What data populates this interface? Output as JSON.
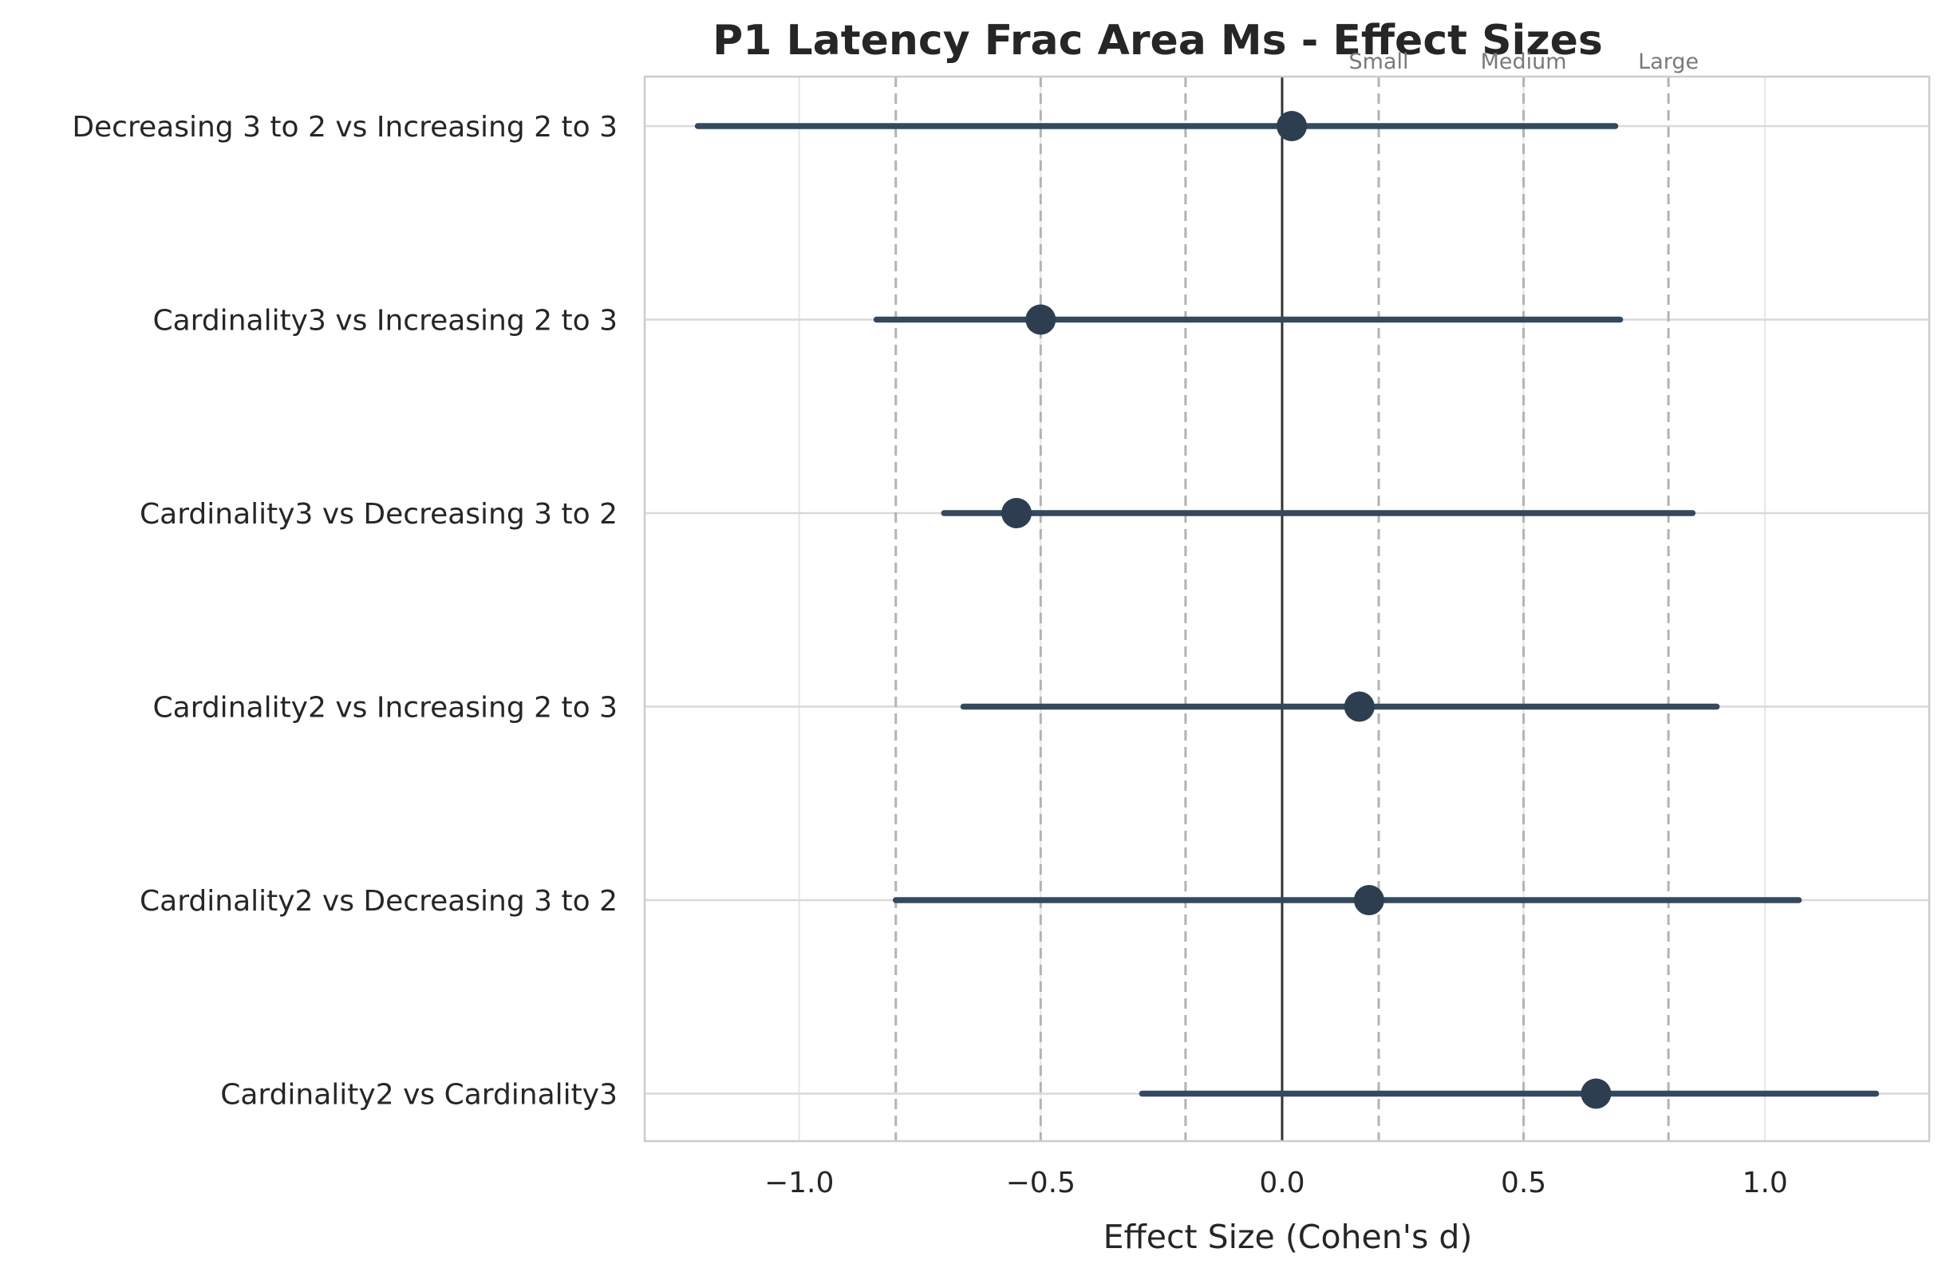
{
  "chart_data": {
    "type": "scatter",
    "subtype": "forest-plot",
    "title": "P1 Latency Frac Area Ms - Effect Sizes",
    "xlabel": "Effect Size (Cohen's d)",
    "ylabel": "",
    "xlim": [
      -1.32,
      1.34
    ],
    "xticks": [
      -1.0,
      -0.5,
      0.0,
      0.5,
      1.0
    ],
    "xtick_labels": [
      "−1.0",
      "−0.5",
      "0.0",
      "0.5",
      "1.0"
    ],
    "grid": true,
    "comparisons": [
      {
        "label": "Decreasing 3 to 2 vs Increasing 2 to 3",
        "d": 0.02,
        "ci_low": -1.21,
        "ci_high": 0.69
      },
      {
        "label": "Cardinality3 vs Increasing 2 to 3",
        "d": -0.5,
        "ci_low": -0.84,
        "ci_high": 0.7
      },
      {
        "label": "Cardinality3 vs Decreasing 3 to 2",
        "d": -0.55,
        "ci_low": -0.7,
        "ci_high": 0.85
      },
      {
        "label": "Cardinality2 vs Increasing 2 to 3",
        "d": 0.16,
        "ci_low": -0.66,
        "ci_high": 0.9
      },
      {
        "label": "Cardinality2 vs Decreasing 3 to 2",
        "d": 0.18,
        "ci_low": -0.8,
        "ci_high": 1.07
      },
      {
        "label": "Cardinality2 vs Cardinality3",
        "d": 0.65,
        "ci_low": -0.29,
        "ci_high": 1.23
      }
    ],
    "thresholds": [
      {
        "value": -0.8,
        "label": ""
      },
      {
        "value": -0.5,
        "label": ""
      },
      {
        "value": -0.2,
        "label": ""
      },
      {
        "value": 0.2,
        "label": "Small"
      },
      {
        "value": 0.5,
        "label": "Medium"
      },
      {
        "value": 0.8,
        "label": "Large"
      }
    ],
    "zero_line": 0.0,
    "colors": {
      "point": "#2c3e50",
      "ci_line": "#34495e",
      "grid": "#d9d9d9",
      "threshold": "#b3b3b3",
      "zero": "#333333",
      "spine": "#cccccc"
    }
  }
}
